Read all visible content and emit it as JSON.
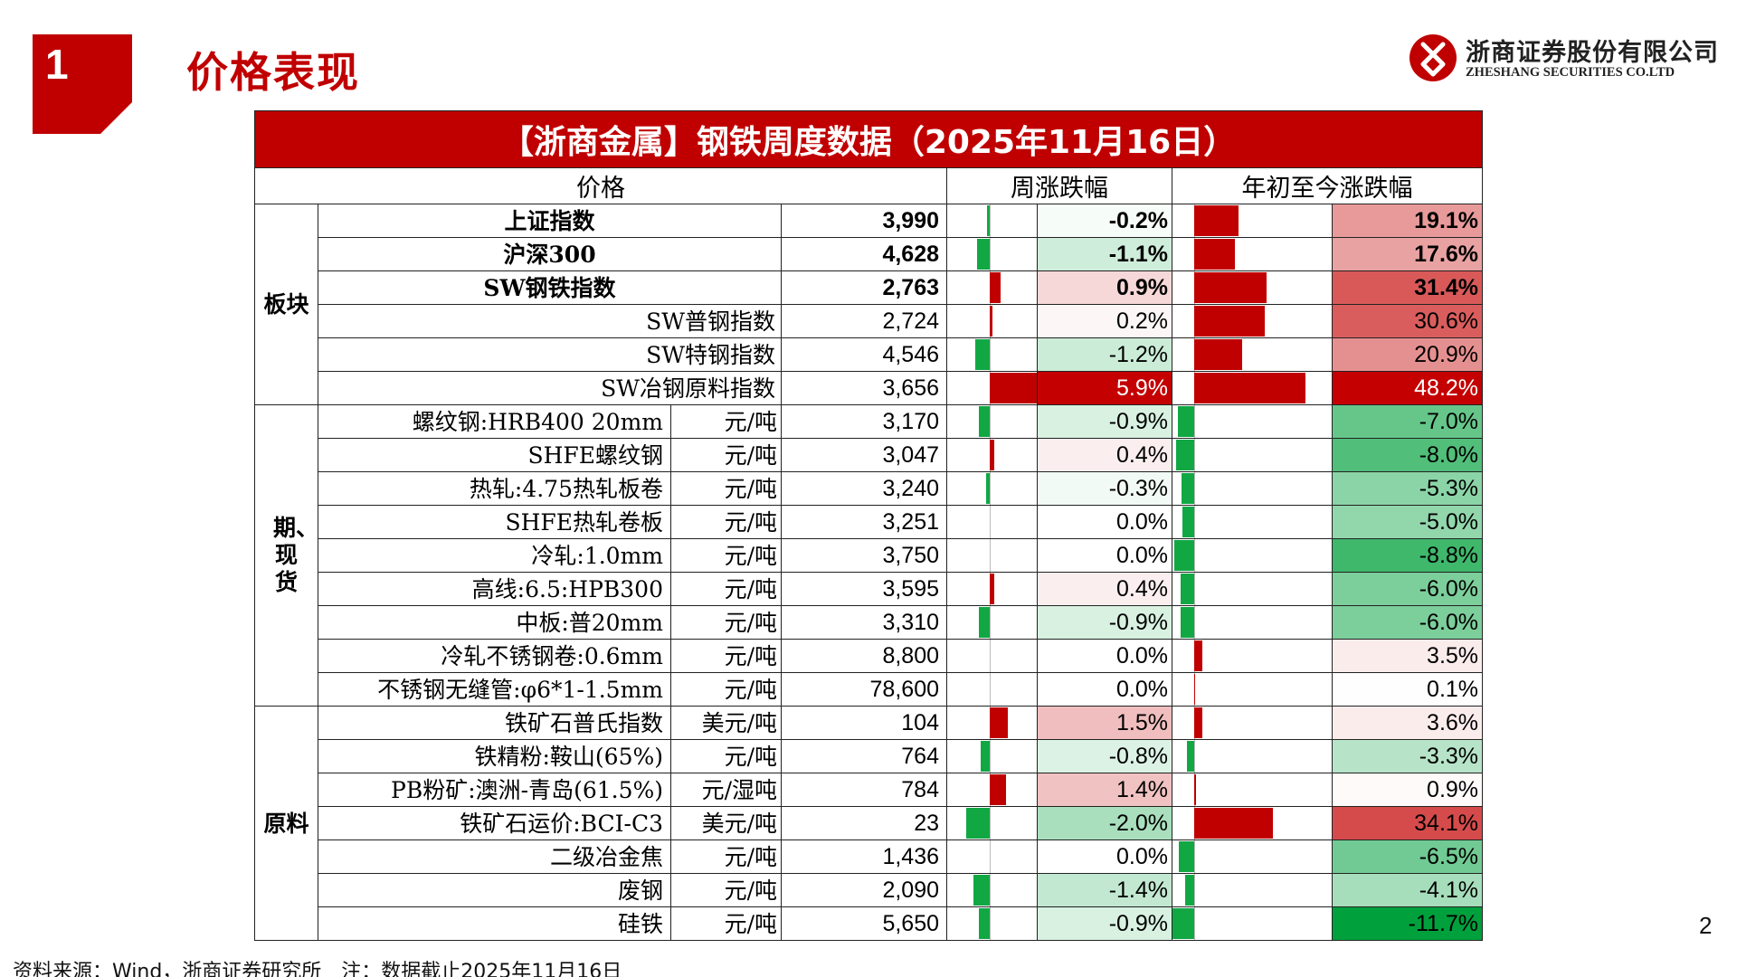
{
  "section": {
    "number": "1",
    "title": "价格表现"
  },
  "logo": {
    "company_cn": "浙商证券股份有限公司",
    "company_en": "ZHESHANG SECURITIES CO.LTD"
  },
  "table": {
    "title": "【浙商金属】钢铁周度数据（2025年11月16日）",
    "headers": {
      "price": "价格",
      "weekly": "周涨跌幅",
      "ytd": "年初至今涨跌幅"
    },
    "groups": [
      {
        "label": "板块",
        "rows": [
          {
            "name": "上证指数",
            "unit": "",
            "value": "3,990",
            "weekly": "-0.2%",
            "weekly_num": -0.2,
            "ytd": "19.1%",
            "ytd_num": 19.1,
            "bold": true
          },
          {
            "name": "沪深300",
            "unit": "",
            "value": "4,628",
            "weekly": "-1.1%",
            "weekly_num": -1.1,
            "ytd": "17.6%",
            "ytd_num": 17.6,
            "bold": true
          },
          {
            "name": "SW钢铁指数",
            "unit": "",
            "value": "2,763",
            "weekly": "0.9%",
            "weekly_num": 0.9,
            "ytd": "31.4%",
            "ytd_num": 31.4,
            "bold": true
          },
          {
            "name": "SW普钢指数",
            "unit": "",
            "value": "2,724",
            "weekly": "0.2%",
            "weekly_num": 0.2,
            "ytd": "30.6%",
            "ytd_num": 30.6,
            "bold": false
          },
          {
            "name": "SW特钢指数",
            "unit": "",
            "value": "4,546",
            "weekly": "-1.2%",
            "weekly_num": -1.2,
            "ytd": "20.9%",
            "ytd_num": 20.9,
            "bold": false
          },
          {
            "name": "SW冶钢原料指数",
            "unit": "",
            "value": "3,656",
            "weekly": "5.9%",
            "weekly_num": 5.9,
            "ytd": "48.2%",
            "ytd_num": 48.2,
            "bold": false
          }
        ]
      },
      {
        "label": "期、现货",
        "rows": [
          {
            "name": "螺纹钢:HRB400 20mm",
            "unit": "元/吨",
            "value": "3,170",
            "weekly": "-0.9%",
            "weekly_num": -0.9,
            "ytd": "-7.0%",
            "ytd_num": -7.0,
            "bold": false
          },
          {
            "name": "SHFE螺纹钢",
            "unit": "元/吨",
            "value": "3,047",
            "weekly": "0.4%",
            "weekly_num": 0.4,
            "ytd": "-8.0%",
            "ytd_num": -8.0,
            "bold": false
          },
          {
            "name": "热轧:4.75热轧板卷",
            "unit": "元/吨",
            "value": "3,240",
            "weekly": "-0.3%",
            "weekly_num": -0.3,
            "ytd": "-5.3%",
            "ytd_num": -5.3,
            "bold": false
          },
          {
            "name": "SHFE热轧卷板",
            "unit": "元/吨",
            "value": "3,251",
            "weekly": "0.0%",
            "weekly_num": 0.0,
            "ytd": "-5.0%",
            "ytd_num": -5.0,
            "bold": false
          },
          {
            "name": "冷轧:1.0mm",
            "unit": "元/吨",
            "value": "3,750",
            "weekly": "0.0%",
            "weekly_num": 0.0,
            "ytd": "-8.8%",
            "ytd_num": -8.8,
            "bold": false
          },
          {
            "name": "高线:6.5:HPB300",
            "unit": "元/吨",
            "value": "3,595",
            "weekly": "0.4%",
            "weekly_num": 0.4,
            "ytd": "-6.0%",
            "ytd_num": -6.0,
            "bold": false
          },
          {
            "name": "中板:普20mm",
            "unit": "元/吨",
            "value": "3,310",
            "weekly": "-0.9%",
            "weekly_num": -0.9,
            "ytd": "-6.0%",
            "ytd_num": -6.0,
            "bold": false
          },
          {
            "name": "冷轧不锈钢卷:0.6mm",
            "unit": "元/吨",
            "value": "8,800",
            "weekly": "0.0%",
            "weekly_num": 0.0,
            "ytd": "3.5%",
            "ytd_num": 3.5,
            "bold": false
          },
          {
            "name": "不锈钢无缝管:φ6*1-1.5mm",
            "unit": "元/吨",
            "value": "78,600",
            "weekly": "0.0%",
            "weekly_num": 0.0,
            "ytd": "0.1%",
            "ytd_num": 0.1,
            "bold": false
          }
        ]
      },
      {
        "label": "原料",
        "rows": [
          {
            "name": "铁矿石普氏指数",
            "unit": "美元/吨",
            "value": "104",
            "weekly": "1.5%",
            "weekly_num": 1.5,
            "ytd": "3.6%",
            "ytd_num": 3.6,
            "bold": false
          },
          {
            "name": "铁精粉:鞍山(65%)",
            "unit": "元/吨",
            "value": "764",
            "weekly": "-0.8%",
            "weekly_num": -0.8,
            "ytd": "-3.3%",
            "ytd_num": -3.3,
            "bold": false
          },
          {
            "name": "PB粉矿:澳洲-青岛(61.5%)",
            "unit": "元/湿吨",
            "value": "784",
            "weekly": "1.4%",
            "weekly_num": 1.4,
            "ytd": "0.9%",
            "ytd_num": 0.9,
            "bold": false
          },
          {
            "name": "铁矿石运价:BCI-C3",
            "unit": "美元/吨",
            "value": "23",
            "weekly": "-2.0%",
            "weekly_num": -2.0,
            "ytd": "34.1%",
            "ytd_num": 34.1,
            "bold": false
          },
          {
            "name": "二级冶金焦",
            "unit": "元/吨",
            "value": "1,436",
            "weekly": "0.0%",
            "weekly_num": 0.0,
            "ytd": "-6.5%",
            "ytd_num": -6.5,
            "bold": false
          },
          {
            "name": "废钢",
            "unit": "元/吨",
            "value": "2,090",
            "weekly": "-1.4%",
            "weekly_num": -1.4,
            "ytd": "-4.1%",
            "ytd_num": -4.1,
            "bold": false
          },
          {
            "name": "硅铁",
            "unit": "元/吨",
            "value": "5,650",
            "weekly": "-0.9%",
            "weekly_num": -0.9,
            "ytd": "-11.7%",
            "ytd_num": -11.7,
            "bold": false
          }
        ]
      }
    ]
  },
  "footnote": "资料来源：Wind，浙商证券研究所　注：数据截止2025年11月16日",
  "page_number": "2",
  "colors": {
    "brand_red": "#c00000",
    "up_red": "#c00000",
    "down_green": "#11a844",
    "up_heat": "#d03a3a",
    "down_heat": "#13a847"
  }
}
